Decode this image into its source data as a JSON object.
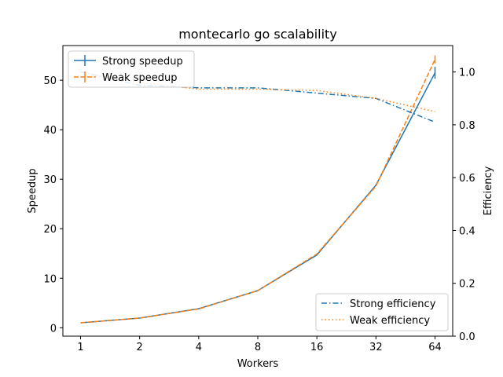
{
  "chart_data": {
    "type": "line",
    "title": "montecarlo go scalability",
    "xlabel": "Workers",
    "ylabel_left": "Speedup",
    "ylabel_right": "Efficiency",
    "x": [
      1,
      2,
      4,
      8,
      16,
      32,
      64
    ],
    "x_ticks": [
      "1",
      "2",
      "4",
      "8",
      "16",
      "32",
      "64"
    ],
    "x_scale": "log2",
    "y_left_lim": [
      -1.7,
      57.0
    ],
    "y_left_ticks": [
      "0",
      "10",
      "20",
      "30",
      "40",
      "50"
    ],
    "y_right_lim": [
      0.0,
      1.1
    ],
    "y_right_ticks": [
      "0.0",
      "0.2",
      "0.4",
      "0.6",
      "0.8",
      "1.0"
    ],
    "grid": false,
    "colors": {
      "blue": "#1f77b4",
      "orange": "#ff7f0e"
    },
    "legend_left": {
      "placement": "upper-left",
      "entries": [
        "Strong speedup",
        "Weak speedup"
      ]
    },
    "legend_right": {
      "placement": "lower-right",
      "entries": [
        "Strong efficiency",
        "Weak efficiency"
      ]
    },
    "series": [
      {
        "name": "Strong speedup",
        "axis": "left",
        "style": "solid-errorbar",
        "color": "#1f77b4",
        "values": [
          1.0,
          1.95,
          3.85,
          7.5,
          14.7,
          28.8,
          51.5
        ],
        "errors": [
          0,
          0,
          0,
          0,
          0,
          0,
          1.2
        ]
      },
      {
        "name": "Weak speedup",
        "axis": "left",
        "style": "dashed-errorbar",
        "color": "#ff7f0e",
        "values": [
          1.0,
          1.95,
          3.8,
          7.5,
          14.9,
          28.6,
          54.2
        ],
        "errors": [
          0,
          0,
          0,
          0,
          0,
          0,
          0.8
        ]
      },
      {
        "name": "Strong efficiency",
        "axis": "right",
        "style": "dashdot",
        "color": "#1f77b4",
        "values": [
          1.0,
          0.95,
          0.94,
          0.94,
          0.92,
          0.9,
          0.81
        ]
      },
      {
        "name": "Weak efficiency",
        "axis": "right",
        "style": "dotted",
        "color": "#ff7f0e",
        "values": [
          1.0,
          0.96,
          0.935,
          0.935,
          0.93,
          0.9,
          0.85
        ]
      }
    ]
  }
}
